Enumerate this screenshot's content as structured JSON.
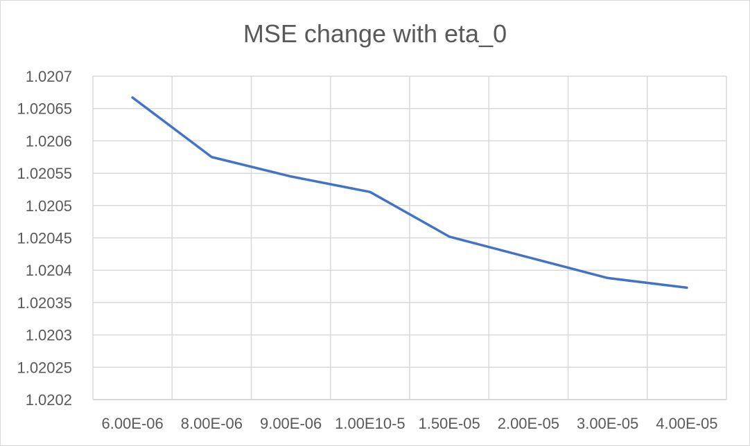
{
  "chart_data": {
    "type": "line",
    "title": "MSE change with eta_0",
    "xlabel": "",
    "ylabel": "",
    "categories": [
      "6.00E-06",
      "8.00E-06",
      "9.00E-06",
      "1.00E10-5",
      "1.50E-05",
      "2.00E-05",
      "3.00E-05",
      "4.00E-05"
    ],
    "series": [
      {
        "values": [
          1.020667,
          1.020575,
          1.020545,
          1.020521,
          1.020452,
          1.02042,
          1.020388,
          1.020373
        ],
        "color": "#4472c4"
      }
    ],
    "y_ticks": [
      "1.0207",
      "1.02065",
      "1.0206",
      "1.02055",
      "1.0205",
      "1.02045",
      "1.0204",
      "1.02035",
      "1.0203",
      "1.02025",
      "1.0202"
    ],
    "ylim": [
      1.0202,
      1.0207
    ],
    "grid": true,
    "legend": "none",
    "colors": {
      "gridline": "#d9d9d9",
      "axis_text": "#595959",
      "title_text": "#595959"
    }
  }
}
